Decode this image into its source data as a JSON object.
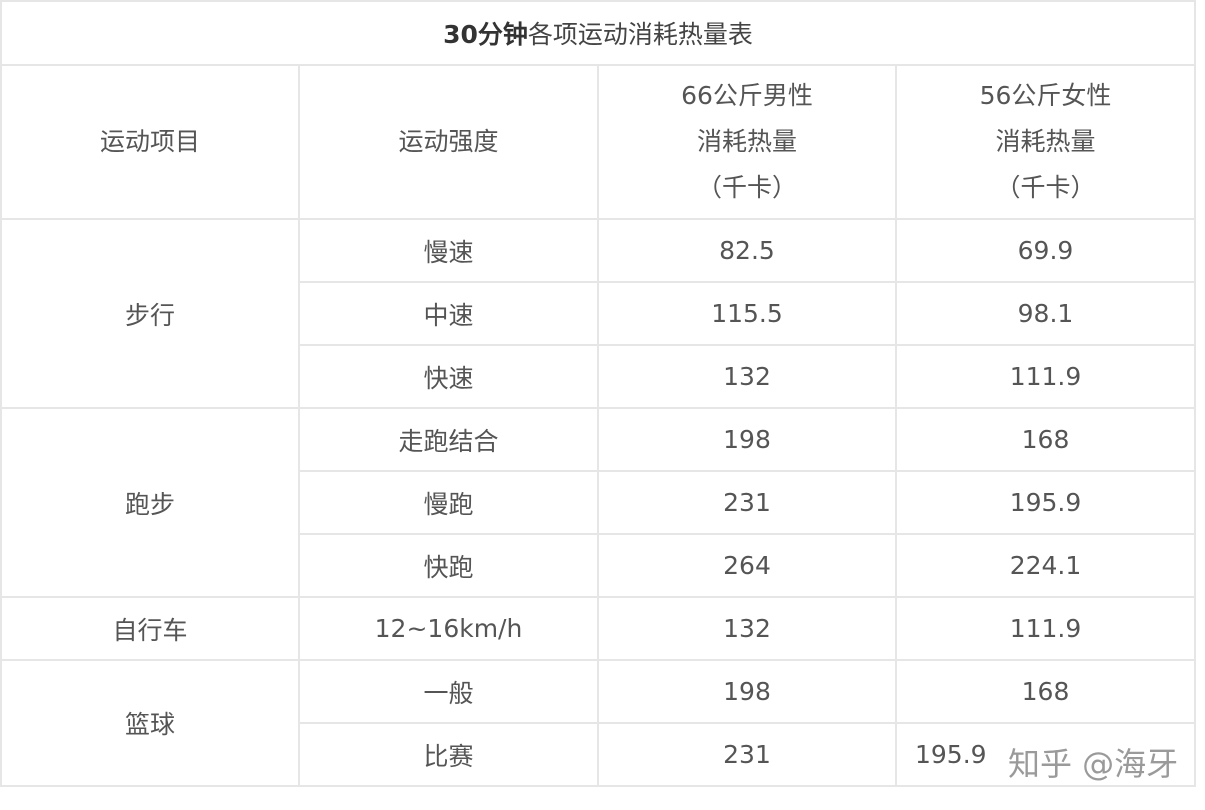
{
  "title": {
    "bold": "30分钟",
    "rest": "各项运动消耗热量表"
  },
  "headers": {
    "sport": "运动项目",
    "intensity": "运动强度",
    "male": [
      "66公斤男性",
      "消耗热量",
      "（千卡）"
    ],
    "female": [
      "56公斤女性",
      "消耗热量",
      "（千卡）"
    ]
  },
  "groups": [
    {
      "sport": "步行",
      "rows": [
        {
          "intensity": "慢速",
          "male": "82.5",
          "female": "69.9"
        },
        {
          "intensity": "中速",
          "male": "115.5",
          "female": "98.1"
        },
        {
          "intensity": "快速",
          "male": "132",
          "female": "111.9"
        }
      ]
    },
    {
      "sport": "跑步",
      "rows": [
        {
          "intensity": "走跑结合",
          "male": "198",
          "female": "168"
        },
        {
          "intensity": "慢跑",
          "male": "231",
          "female": "195.9"
        },
        {
          "intensity": "快跑",
          "male": "264",
          "female": "224.1"
        }
      ]
    },
    {
      "sport": "自行车",
      "rows": [
        {
          "intensity": "12~16km/h",
          "male": "132",
          "female": "111.9"
        }
      ]
    },
    {
      "sport": "篮球",
      "rows": [
        {
          "intensity": "一般",
          "male": "198",
          "female": "168"
        },
        {
          "intensity": "比赛",
          "male": "231",
          "female": "195.9"
        }
      ]
    }
  ],
  "watermark": "知乎 @海牙"
}
